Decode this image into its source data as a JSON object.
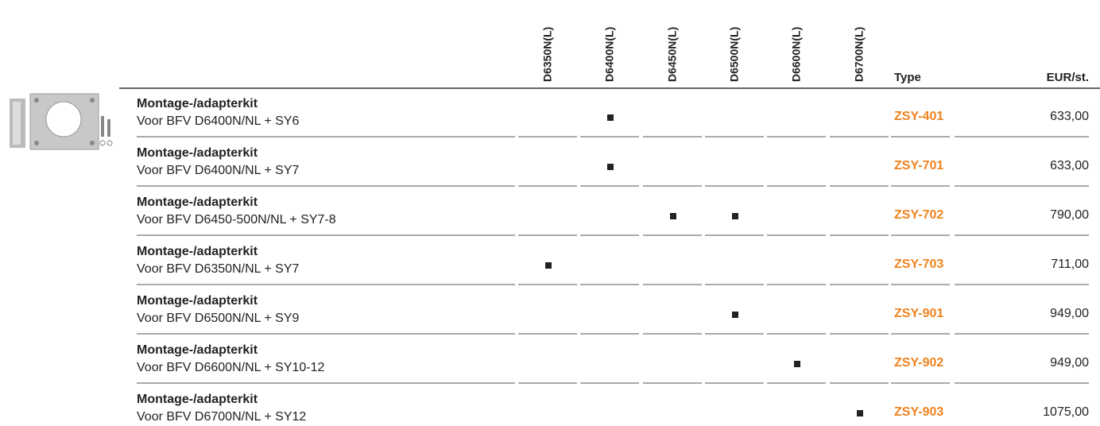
{
  "header": {
    "models": [
      "D6350N(L)",
      "D6400N(L)",
      "D6450N(L)",
      "D6500N(L)",
      "D6600N(L)",
      "D6700N(L)"
    ],
    "type": "Type",
    "price": "EUR/st."
  },
  "table": {
    "rows": [
      {
        "title": "Montage-/adapterkit",
        "subtitle": "Voor BFV D6400N/NL + SY6",
        "marks": [
          false,
          true,
          false,
          false,
          false,
          false
        ],
        "type": "ZSY-401",
        "price": "633,00"
      },
      {
        "title": "Montage-/adapterkit",
        "subtitle": "Voor BFV D6400N/NL + SY7",
        "marks": [
          false,
          true,
          false,
          false,
          false,
          false
        ],
        "type": "ZSY-701",
        "price": "633,00"
      },
      {
        "title": "Montage-/adapterkit",
        "subtitle": "Voor BFV D6450-500N/NL + SY7-8",
        "marks": [
          false,
          false,
          true,
          true,
          false,
          false
        ],
        "type": "ZSY-702",
        "price": "790,00"
      },
      {
        "title": "Montage-/adapterkit",
        "subtitle": "Voor BFV D6350N/NL + SY7",
        "marks": [
          true,
          false,
          false,
          false,
          false,
          false
        ],
        "type": "ZSY-703",
        "price": "711,00"
      },
      {
        "title": "Montage-/adapterkit",
        "subtitle": "Voor BFV D6500N/NL + SY9",
        "marks": [
          false,
          false,
          false,
          true,
          false,
          false
        ],
        "type": "ZSY-901",
        "price": "949,00"
      },
      {
        "title": "Montage-/adapterkit",
        "subtitle": "Voor BFV D6600N/NL + SY10-12",
        "marks": [
          false,
          false,
          false,
          false,
          true,
          false
        ],
        "type": "ZSY-902",
        "price": "949,00"
      },
      {
        "title": "Montage-/adapterkit",
        "subtitle": "Voor BFV D6700N/NL + SY12",
        "marks": [
          false,
          false,
          false,
          false,
          false,
          true
        ],
        "type": "ZSY-903",
        "price": "1075,00"
      }
    ]
  }
}
